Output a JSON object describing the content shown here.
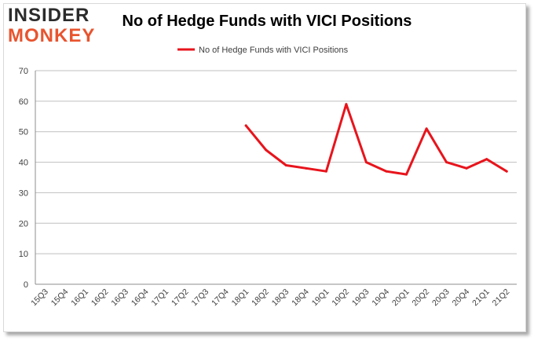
{
  "logo": {
    "line1": "INSIDER",
    "line2": "MONKEY"
  },
  "chart_data": {
    "type": "line",
    "title": "No of Hedge Funds with VICI Positions",
    "categories": [
      "15Q3",
      "15Q4",
      "16Q1",
      "16Q2",
      "16Q3",
      "16Q4",
      "17Q1",
      "17Q2",
      "17Q3",
      "17Q4",
      "18Q1",
      "18Q2",
      "18Q3",
      "18Q4",
      "19Q1",
      "19Q2",
      "19Q3",
      "19Q4",
      "20Q1",
      "20Q2",
      "20Q3",
      "20Q4",
      "21Q1",
      "21Q2"
    ],
    "series": [
      {
        "name": "No of Hedge Funds with VICI Positions",
        "color": "#e8141c",
        "values": [
          null,
          null,
          null,
          null,
          null,
          null,
          null,
          null,
          null,
          null,
          52,
          44,
          39,
          38,
          37,
          59,
          40,
          37,
          36,
          51,
          40,
          38,
          41,
          37
        ]
      }
    ],
    "yticks": [
      0,
      10,
      20,
      30,
      40,
      50,
      60,
      70
    ],
    "ylim": [
      0,
      70
    ],
    "grid": true,
    "legend": "top-center",
    "colors": {
      "grid": "#bfbfbf",
      "axis": "#8c8c8c",
      "logo_dark": "#2b2b2b",
      "logo_accent": "#e8542e"
    }
  }
}
